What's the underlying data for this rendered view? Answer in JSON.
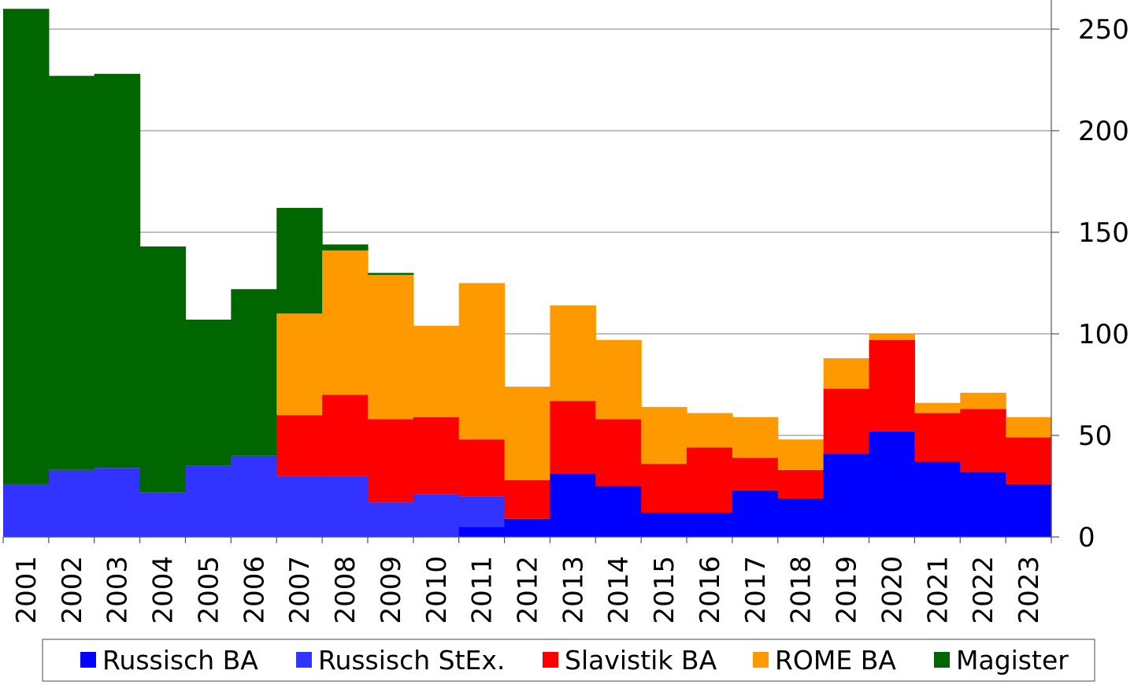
{
  "chart_data": {
    "type": "bar",
    "stacked": true,
    "categories": [
      "2001",
      "2002",
      "2003",
      "2004",
      "2005",
      "2006",
      "2007",
      "2008",
      "2009",
      "2010",
      "2011",
      "2012",
      "2013",
      "2014",
      "2015",
      "2016",
      "2017",
      "2018",
      "2019",
      "2020",
      "2021",
      "2022",
      "2023"
    ],
    "series": [
      {
        "name": "Russisch BA",
        "color": "#0000ff",
        "values": [
          0,
          0,
          0,
          0,
          0,
          0,
          0,
          0,
          0,
          0,
          5,
          9,
          31,
          25,
          12,
          12,
          23,
          19,
          41,
          52,
          37,
          32,
          26
        ]
      },
      {
        "name": "Russisch StEx.",
        "color": "#3333ff",
        "values": [
          26,
          33,
          34,
          22,
          35,
          40,
          30,
          30,
          17,
          21,
          15,
          0,
          0,
          0,
          0,
          0,
          0,
          0,
          0,
          0,
          0,
          0,
          0
        ]
      },
      {
        "name": "Slavistik BA",
        "color": "#ff0000",
        "values": [
          0,
          0,
          0,
          0,
          0,
          0,
          30,
          40,
          41,
          38,
          28,
          19,
          36,
          33,
          24,
          32,
          16,
          14,
          32,
          45,
          24,
          31,
          23
        ]
      },
      {
        "name": "ROME BA",
        "color": "#ff9900",
        "values": [
          0,
          0,
          0,
          0,
          0,
          0,
          50,
          71,
          71,
          45,
          77,
          46,
          47,
          39,
          28,
          17,
          20,
          15,
          15,
          3,
          5,
          8,
          10
        ]
      },
      {
        "name": "Magister",
        "color": "#006600",
        "values": [
          234,
          194,
          194,
          121,
          72,
          82,
          52,
          3,
          1,
          0,
          0,
          0,
          0,
          0,
          0,
          0,
          0,
          0,
          0,
          0,
          0,
          0,
          0
        ]
      }
    ],
    "y_ticks": [
      "0",
      "50",
      "100",
      "150",
      "200",
      "250"
    ],
    "ylim": [
      0,
      260
    ],
    "y_axis_side": "right",
    "grid": true,
    "legend_position": "bottom"
  }
}
